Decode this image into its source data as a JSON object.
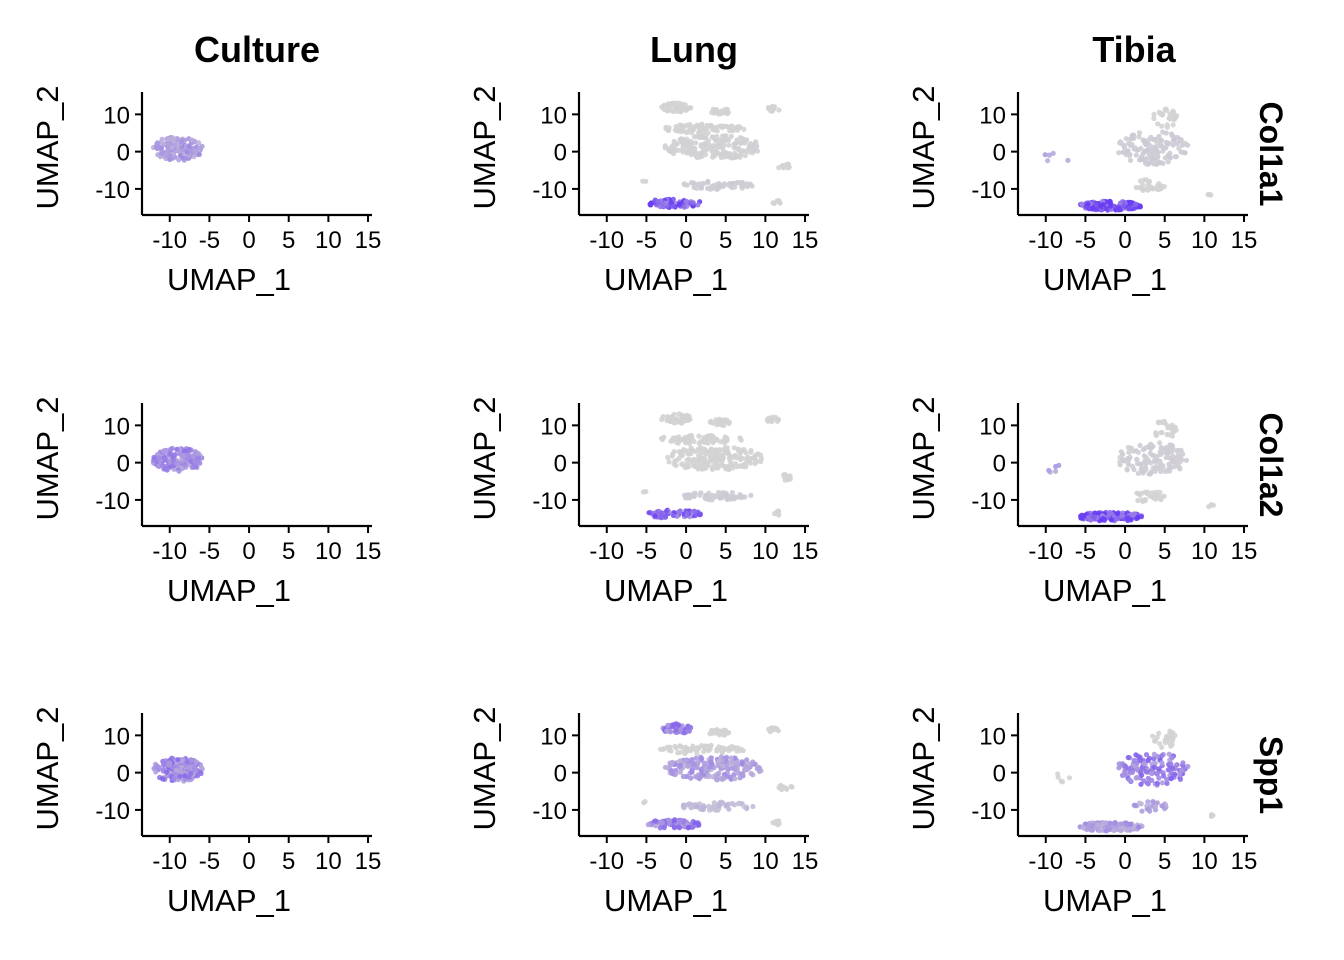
{
  "chart_data": {
    "type": "scatter",
    "column_titles": [
      "Culture",
      "Lung",
      "Tibia"
    ],
    "row_titles": [
      "Col1a1",
      "Col1a2",
      "Spp1"
    ],
    "xlabel": "UMAP_1",
    "ylabel": "UMAP_2",
    "xlim": [
      -13.5,
      15.5
    ],
    "ylim": [
      -17,
      16
    ],
    "x_ticks": [
      -10,
      -5,
      0,
      5,
      10,
      15
    ],
    "x_tick_labels": [
      "-10",
      "-5",
      "0",
      "5",
      "10",
      "15"
    ],
    "y_ticks": [
      -10,
      0,
      10
    ],
    "y_tick_labels": [
      "-10",
      "0",
      "10"
    ],
    "color_low": "#d3d3d3",
    "color_high": "#6a3cf5",
    "cell_groups": {
      "Culture": [
        {
          "name": "culture-blob",
          "cx": -9.0,
          "cy": 0.8,
          "rx": 3.2,
          "ry": 3.2,
          "n": 160
        }
      ],
      "Lung": [
        {
          "name": "top-left-cluster",
          "cx": -1.2,
          "cy": 11.8,
          "rx": 1.9,
          "ry": 1.3,
          "n": 45
        },
        {
          "name": "top-mid-cluster",
          "cx": 4.2,
          "cy": 10.8,
          "rx": 1.4,
          "ry": 0.9,
          "n": 22
        },
        {
          "name": "top-right-cluster",
          "cx": 11.0,
          "cy": 11.5,
          "rx": 0.9,
          "ry": 0.7,
          "n": 12
        },
        {
          "name": "upper-band",
          "cx": 2.0,
          "cy": 6.2,
          "rx": 5.5,
          "ry": 1.2,
          "n": 70
        },
        {
          "name": "center-mass",
          "cx": 3.5,
          "cy": 1.2,
          "rx": 6.2,
          "ry": 3.2,
          "n": 190
        },
        {
          "name": "right-middle-cluster",
          "cx": 12.5,
          "cy": -4.0,
          "rx": 0.9,
          "ry": 0.8,
          "n": 12
        },
        {
          "name": "lower-band",
          "cx": 4.0,
          "cy": -9.0,
          "rx": 4.6,
          "ry": 1.1,
          "n": 60
        },
        {
          "name": "lower-arc",
          "cx": -1.5,
          "cy": -13.8,
          "rx": 3.4,
          "ry": 1.2,
          "n": 65
        },
        {
          "name": "bottom-right-dot",
          "cx": 11.5,
          "cy": -13.5,
          "rx": 0.6,
          "ry": 0.6,
          "n": 6
        },
        {
          "name": "far-left-dot",
          "cx": -5.2,
          "cy": -8.0,
          "rx": 0.3,
          "ry": 0.3,
          "n": 2
        }
      ],
      "Tibia": [
        {
          "name": "upper-cluster",
          "cx": 3.5,
          "cy": 1.0,
          "rx": 4.5,
          "ry": 4.5,
          "n": 130
        },
        {
          "name": "top-cluster",
          "cx": 5.0,
          "cy": 9.0,
          "rx": 1.6,
          "ry": 2.5,
          "n": 25
        },
        {
          "name": "side-band",
          "cx": 3.0,
          "cy": -9.0,
          "rx": 2.2,
          "ry": 1.5,
          "n": 25
        },
        {
          "name": "bottom-arc",
          "cx": -1.8,
          "cy": -14.5,
          "rx": 4.0,
          "ry": 1.2,
          "n": 140
        },
        {
          "name": "left-dots",
          "cx": -8.5,
          "cy": -1.5,
          "rx": 2.0,
          "ry": 1.2,
          "n": 5
        },
        {
          "name": "right-dot",
          "cx": 10.8,
          "cy": -11.5,
          "rx": 0.4,
          "ry": 0.4,
          "n": 3
        }
      ]
    },
    "expression": {
      "Col1a1": {
        "Culture": {
          "culture-blob": 0.35
        },
        "Lung": {
          "lower-arc": 0.8,
          "lower-band": 0.05,
          "center-mass": 0.02
        },
        "Tibia": {
          "bottom-arc": 0.9,
          "upper-cluster": 0.05,
          "left-dots": 0.3
        }
      },
      "Col1a2": {
        "Culture": {
          "culture-blob": 0.45
        },
        "Lung": {
          "lower-arc": 0.7,
          "lower-band": 0.05
        },
        "Tibia": {
          "bottom-arc": 0.85,
          "upper-cluster": 0.04,
          "left-dots": 0.3
        }
      },
      "Spp1": {
        "Culture": {
          "culture-blob": 0.5
        },
        "Lung": {
          "top-left-cluster": 0.55,
          "center-mass": 0.35,
          "lower-arc": 0.55,
          "lower-band": 0.15
        },
        "Tibia": {
          "upper-cluster": 0.55,
          "bottom-arc": 0.35,
          "side-band": 0.3
        }
      }
    }
  }
}
